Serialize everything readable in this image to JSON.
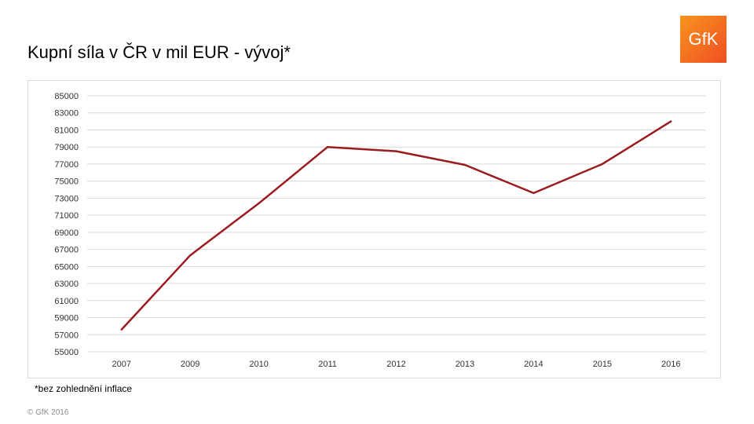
{
  "header": {
    "title": "Kupní síla v ČR v mil EUR - vývoj*"
  },
  "logo": {
    "text": "GfK",
    "color": "#f04e23",
    "color_light": "#f7941d"
  },
  "chart_data": {
    "type": "line",
    "title": "Kupní síla v ČR v mil EUR - vývoj*",
    "xlabel": "",
    "ylabel": "",
    "categories": [
      "2007",
      "2009",
      "2010",
      "2011",
      "2012",
      "2013",
      "2014",
      "2015",
      "2016"
    ],
    "series": [
      {
        "values": [
          57600,
          66300,
          72400,
          79000,
          78500,
          76900,
          73600,
          77000,
          82000
        ],
        "color": "#9b1c1f"
      }
    ],
    "ylim": [
      55000,
      85000
    ],
    "yticks": [
      55000,
      57000,
      59000,
      61000,
      63000,
      65000,
      67000,
      69000,
      71000,
      73000,
      75000,
      77000,
      79000,
      81000,
      83000,
      85000
    ],
    "grid": true,
    "legend": "none"
  },
  "footnote": "*bez zohlednění inflace",
  "copyright": "© GfK 2016"
}
